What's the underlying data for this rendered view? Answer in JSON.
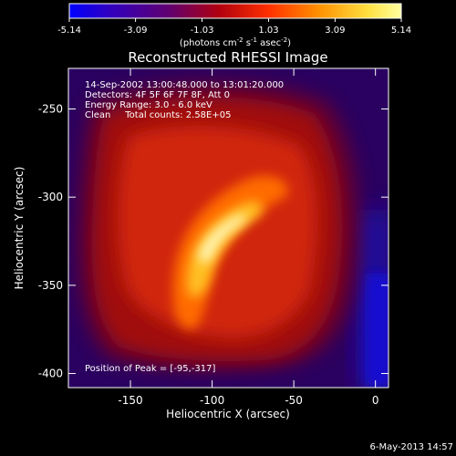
{
  "chart_data": {
    "type": "heatmap",
    "title": "Reconstructed RHESSI Image",
    "xlabel": "Heliocentric X (arcsec)",
    "ylabel": "Heliocentric Y (arcsec)",
    "xlim": [
      -188,
      8
    ],
    "ylim": [
      -408,
      -227
    ],
    "x_ticks": [
      -150,
      -100,
      -50,
      0
    ],
    "y_ticks": [
      -250,
      -300,
      -350,
      -400
    ],
    "colorbar": {
      "min": -5.14,
      "max": 5.14,
      "ticks": [
        -5.14,
        -3.09,
        -1.03,
        1.03,
        3.09,
        5.14
      ],
      "unit_label": "(photons cm",
      "unit_exp1": "-2",
      "unit_mid": " s",
      "unit_exp2": "-1",
      "unit_mid2": " asec",
      "unit_exp3": "-2",
      "unit_end": ")",
      "colors": [
        "#0000ff",
        "#4a0080",
        "#c01000",
        "#ff5000",
        "#ffb000",
        "#ffff80",
        "#ffffff"
      ]
    },
    "annotations": [
      "14-Sep-2002 13:00:48.000 to 13:01:20.000",
      "Detectors: 4F 5F 6F 7F 8F, Att 0",
      "Energy Range: 3.0 - 6.0 keV",
      "Clean     Total counts: 2.58E+05"
    ],
    "peak_label": "Position of Peak = [-95,-317]",
    "peak": [
      -95,
      -317
    ],
    "grid": false
  },
  "footer": {
    "date": "6-May-2013 14:57"
  }
}
